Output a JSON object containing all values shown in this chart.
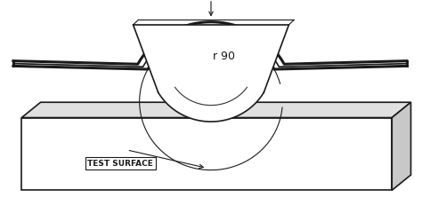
{
  "bg_color": "#ffffff",
  "line_color": "#1a1a1a",
  "text_color": "#1a1a1a",
  "label_r90": "r 90",
  "label_test_surface": "TEST SURFACE",
  "figsize": [
    4.74,
    2.32
  ],
  "dpi": 100
}
